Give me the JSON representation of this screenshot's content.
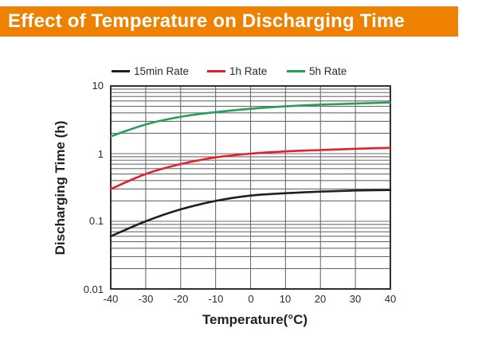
{
  "header": {
    "title": "Effect of Temperature on Discharging Time",
    "bg_color": "#ee8100",
    "text_color": "#ffffff"
  },
  "chart_data": {
    "type": "line",
    "x": [
      -40,
      -30,
      -20,
      -10,
      0,
      10,
      20,
      30,
      40
    ],
    "series": [
      {
        "name": "15min Rate",
        "color": "#231f20",
        "values": [
          0.06,
          0.1,
          0.15,
          0.2,
          0.24,
          0.26,
          0.275,
          0.285,
          0.29
        ]
      },
      {
        "name": "1h Rate",
        "color": "#e4202c",
        "values": [
          0.3,
          0.5,
          0.7,
          0.88,
          1.0,
          1.08,
          1.13,
          1.18,
          1.22
        ]
      },
      {
        "name": "5h Rate",
        "color": "#23a15b",
        "values": [
          1.8,
          2.7,
          3.5,
          4.1,
          4.6,
          5.0,
          5.3,
          5.5,
          5.7
        ]
      }
    ],
    "xlabel": "Temperature(°C)",
    "ylabel": "Discharging Time (h)",
    "x_tick_labels": [
      "-40",
      "-30",
      "-20",
      "-10",
      "0",
      "10",
      "20",
      "30",
      "40"
    ],
    "y_tick_labels": [
      "10",
      "1",
      "0.1",
      "0.01"
    ],
    "y_ticks": [
      10,
      1,
      0.1,
      0.01
    ],
    "xlim": [
      -40,
      40
    ],
    "ylim": [
      0.01,
      10
    ],
    "y_scale": "log",
    "grid": "major and log-minor horizontal, major vertical",
    "legend_position": "top",
    "grid_color": "#6c6c6c",
    "frame_color": "#2f2f2f"
  }
}
